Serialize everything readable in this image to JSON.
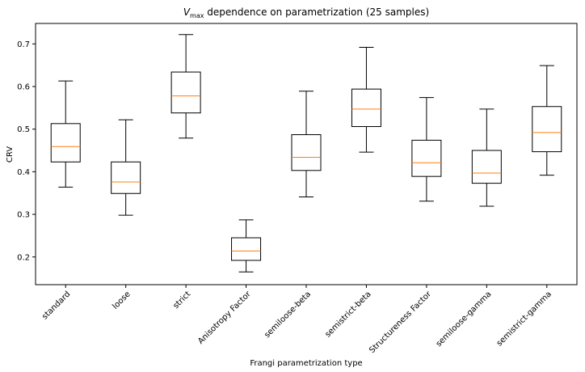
{
  "chart_data": {
    "type": "box",
    "title_prefix": "V",
    "title_subscript": "max",
    "title_suffix": " dependence on parametrization (25 samples)",
    "xlabel": "Frangi parametrization type",
    "ylabel": "CRV",
    "ylim": [
      0.135,
      0.748
    ],
    "yticks": [
      "0.2",
      "0.3",
      "0.4",
      "0.5",
      "0.6",
      "0.7"
    ],
    "grid": false,
    "categories": [
      "standard",
      "loose",
      "strict",
      "Anisotropy Factor",
      "semiloose-beta",
      "semistrict-beta",
      "Structureness Factor",
      "semiloose-gamma",
      "semistrict-gamma"
    ],
    "boxes": [
      {
        "whisker_low": 0.364,
        "q1": 0.423,
        "median": 0.459,
        "q3": 0.513,
        "whisker_high": 0.613
      },
      {
        "whisker_low": 0.298,
        "q1": 0.349,
        "median": 0.376,
        "q3": 0.423,
        "whisker_high": 0.522
      },
      {
        "whisker_low": 0.479,
        "q1": 0.538,
        "median": 0.578,
        "q3": 0.634,
        "whisker_high": 0.722
      },
      {
        "whisker_low": 0.165,
        "q1": 0.192,
        "median": 0.214,
        "q3": 0.245,
        "whisker_high": 0.287
      },
      {
        "whisker_low": 0.341,
        "q1": 0.403,
        "median": 0.434,
        "q3": 0.487,
        "whisker_high": 0.589
      },
      {
        "whisker_low": 0.446,
        "q1": 0.506,
        "median": 0.547,
        "q3": 0.594,
        "whisker_high": 0.692
      },
      {
        "whisker_low": 0.331,
        "q1": 0.389,
        "median": 0.421,
        "q3": 0.474,
        "whisker_high": 0.574
      },
      {
        "whisker_low": 0.319,
        "q1": 0.373,
        "median": 0.397,
        "q3": 0.45,
        "whisker_high": 0.547
      },
      {
        "whisker_low": 0.392,
        "q1": 0.447,
        "median": 0.492,
        "q3": 0.553,
        "whisker_high": 0.649
      }
    ],
    "colors": {
      "box": "#000000",
      "median": "#ff7f0e",
      "whisker": "#000000"
    }
  }
}
